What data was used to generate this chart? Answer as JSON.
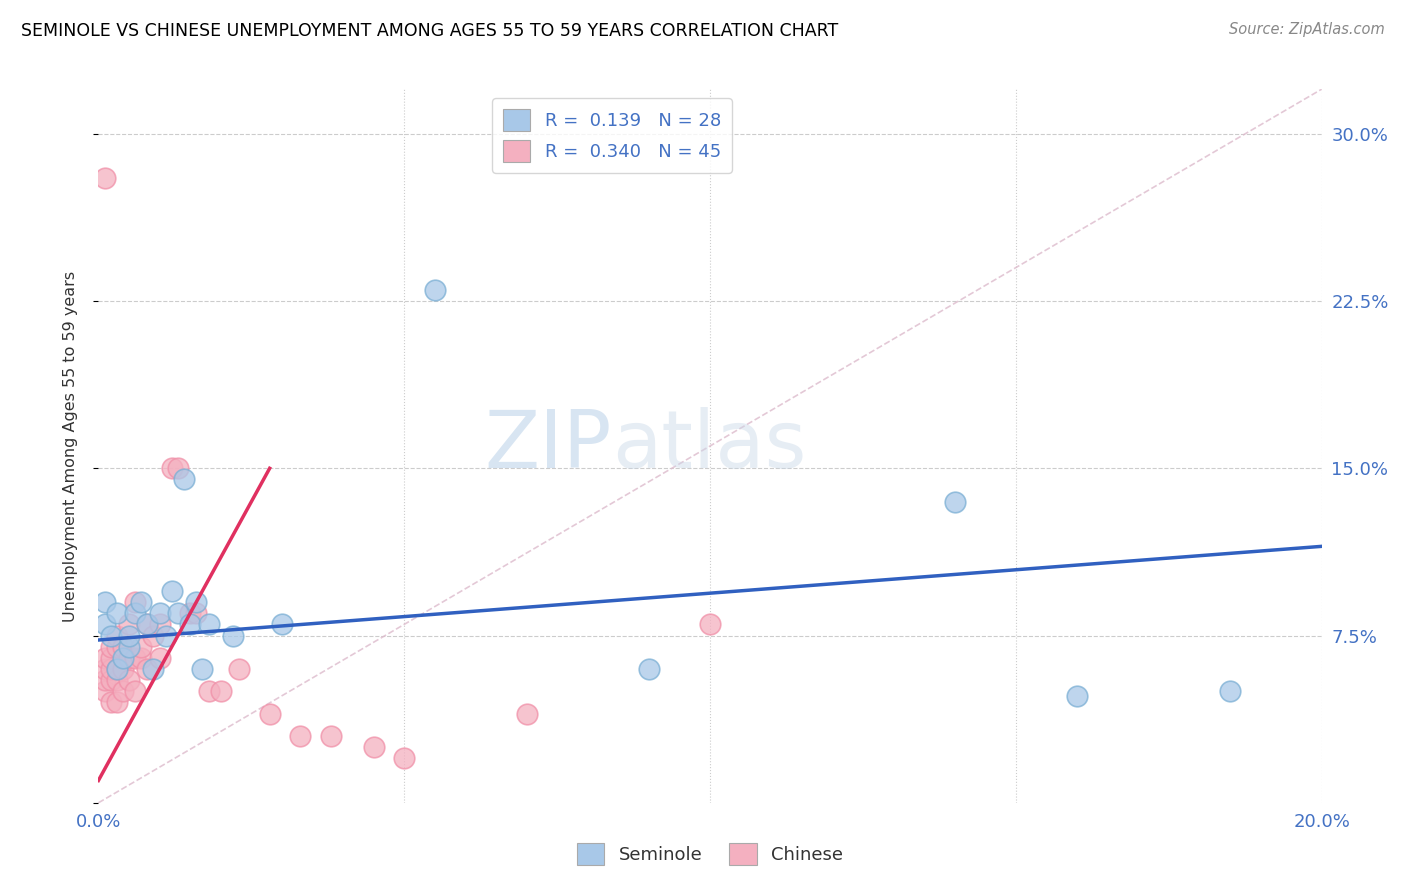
{
  "title": "SEMINOLE VS CHINESE UNEMPLOYMENT AMONG AGES 55 TO 59 YEARS CORRELATION CHART",
  "source": "Source: ZipAtlas.com",
  "ylabel": "Unemployment Among Ages 55 to 59 years",
  "xlim": [
    0.0,
    0.2
  ],
  "ylim": [
    0.0,
    0.32
  ],
  "xticks": [
    0.0,
    0.05,
    0.1,
    0.15,
    0.2
  ],
  "yticks": [
    0.0,
    0.075,
    0.15,
    0.225,
    0.3
  ],
  "legend_R_seminole": "0.139",
  "legend_N_seminole": "28",
  "legend_R_chinese": "0.340",
  "legend_N_chinese": "45",
  "seminole_color": "#a8c8e8",
  "chinese_color": "#f4b0c0",
  "seminole_edge_color": "#7bafd4",
  "chinese_edge_color": "#f090a8",
  "seminole_line_color": "#3060c0",
  "chinese_line_color": "#e03060",
  "watermark_zip": "ZIP",
  "watermark_atlas": "atlas",
  "seminole_x": [
    0.001,
    0.001,
    0.002,
    0.003,
    0.003,
    0.004,
    0.005,
    0.005,
    0.006,
    0.007,
    0.008,
    0.009,
    0.01,
    0.011,
    0.012,
    0.013,
    0.014,
    0.015,
    0.016,
    0.017,
    0.018,
    0.022,
    0.03,
    0.055,
    0.09,
    0.14,
    0.16,
    0.185
  ],
  "seminole_y": [
    0.08,
    0.09,
    0.075,
    0.06,
    0.085,
    0.065,
    0.07,
    0.075,
    0.085,
    0.09,
    0.08,
    0.06,
    0.085,
    0.075,
    0.095,
    0.085,
    0.145,
    0.08,
    0.09,
    0.06,
    0.08,
    0.075,
    0.08,
    0.23,
    0.06,
    0.135,
    0.048,
    0.05
  ],
  "chinese_x": [
    0.001,
    0.001,
    0.001,
    0.001,
    0.001,
    0.002,
    0.002,
    0.002,
    0.002,
    0.002,
    0.003,
    0.003,
    0.003,
    0.003,
    0.003,
    0.004,
    0.004,
    0.004,
    0.005,
    0.005,
    0.005,
    0.006,
    0.006,
    0.006,
    0.007,
    0.007,
    0.008,
    0.008,
    0.009,
    0.01,
    0.01,
    0.012,
    0.013,
    0.015,
    0.016,
    0.018,
    0.02,
    0.023,
    0.028,
    0.033,
    0.038,
    0.045,
    0.05,
    0.07,
    0.1
  ],
  "chinese_y": [
    0.05,
    0.055,
    0.06,
    0.065,
    0.28,
    0.045,
    0.055,
    0.06,
    0.065,
    0.07,
    0.045,
    0.055,
    0.06,
    0.07,
    0.075,
    0.05,
    0.06,
    0.07,
    0.055,
    0.065,
    0.08,
    0.05,
    0.065,
    0.09,
    0.065,
    0.07,
    0.06,
    0.08,
    0.075,
    0.065,
    0.08,
    0.15,
    0.15,
    0.085,
    0.085,
    0.05,
    0.05,
    0.06,
    0.04,
    0.03,
    0.03,
    0.025,
    0.02,
    0.04,
    0.08
  ],
  "blue_line_x": [
    0.0,
    0.2
  ],
  "blue_line_y": [
    0.073,
    0.115
  ],
  "pink_line_x": [
    0.0,
    0.028
  ],
  "pink_line_y": [
    0.01,
    0.15
  ]
}
